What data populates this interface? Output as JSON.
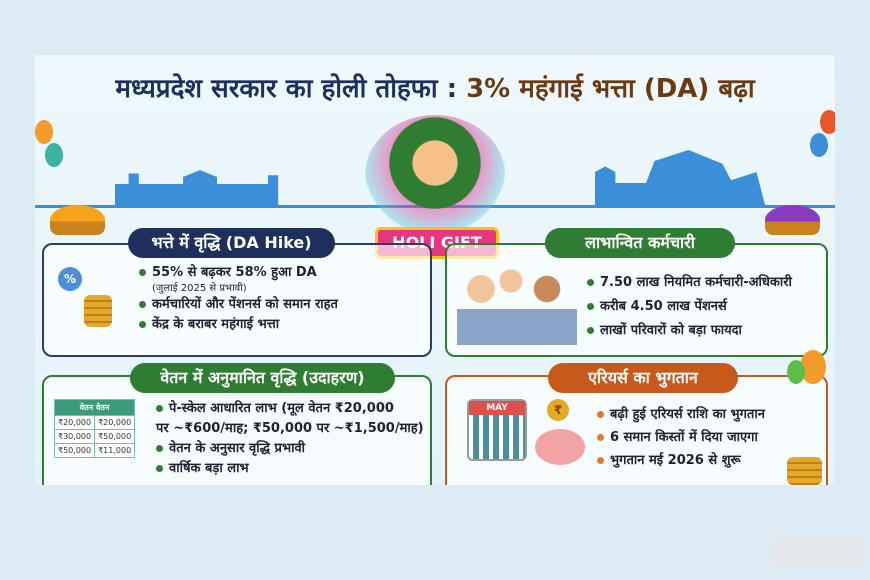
{
  "title": {
    "part1": "मध्यप्रदेश सरकार का होली तोहफा : ",
    "part2": "3% महंगाई भत्ता (DA) बढ़ा"
  },
  "badge": "HOLI GIFT",
  "cards": {
    "da_hike": {
      "heading": "भत्ते में वृद्धि (DA Hike)",
      "items": [
        "55% से बढ़कर 58% हुआ DA",
        "कर्मचारियों और पेंशनर्स को समान राहत",
        "केंद्र के बराबर महंगाई भत्ता"
      ],
      "note": "(जुलाई 2025 से प्रभावी)",
      "icon_label": "%"
    },
    "beneficiaries": {
      "heading": "लाभान्वित कर्मचारी",
      "items": [
        "7.50 लाख नियमित कर्मचारी-अधिकारी",
        "करीब 4.50 लाख पेंशनर्स",
        "लाखों परिवारों को बड़ा फायदा"
      ]
    },
    "salary": {
      "heading": "वेतन में अनुमानित वृद्धि (उदाहरण)",
      "items": [
        "पे-स्केल आधारित लाभ (मूल वेतन ₹20,000",
        "पर ~₹600/माह; ₹50,000 पर ~₹1,500/माह)",
        "वेतन के अनुसार वृद्धि प्रभावी",
        "वार्षिक बड़ा लाभ"
      ],
      "table": {
        "header": "वेतन वेतन",
        "rows": [
          [
            "₹20,000",
            "₹20,000"
          ],
          [
            "₹30,000",
            "₹50,000"
          ],
          [
            "₹50,000",
            "₹11,000"
          ]
        ]
      }
    },
    "arrears": {
      "heading": "एरियर्स का भुगतान",
      "items": [
        "बढ़ी हुई एरियर्स राशि का भुगतान",
        "6 समान किस्तों में दिया जाएगा",
        "भुगतान मई 2026 से शुरू"
      ],
      "calendar_month": "MAY",
      "coin_symbol": "₹"
    }
  },
  "colors": {
    "navy": "#1d2f5c",
    "green": "#2f7d32",
    "orange": "#c9581b",
    "brown": "#6b3a12"
  }
}
